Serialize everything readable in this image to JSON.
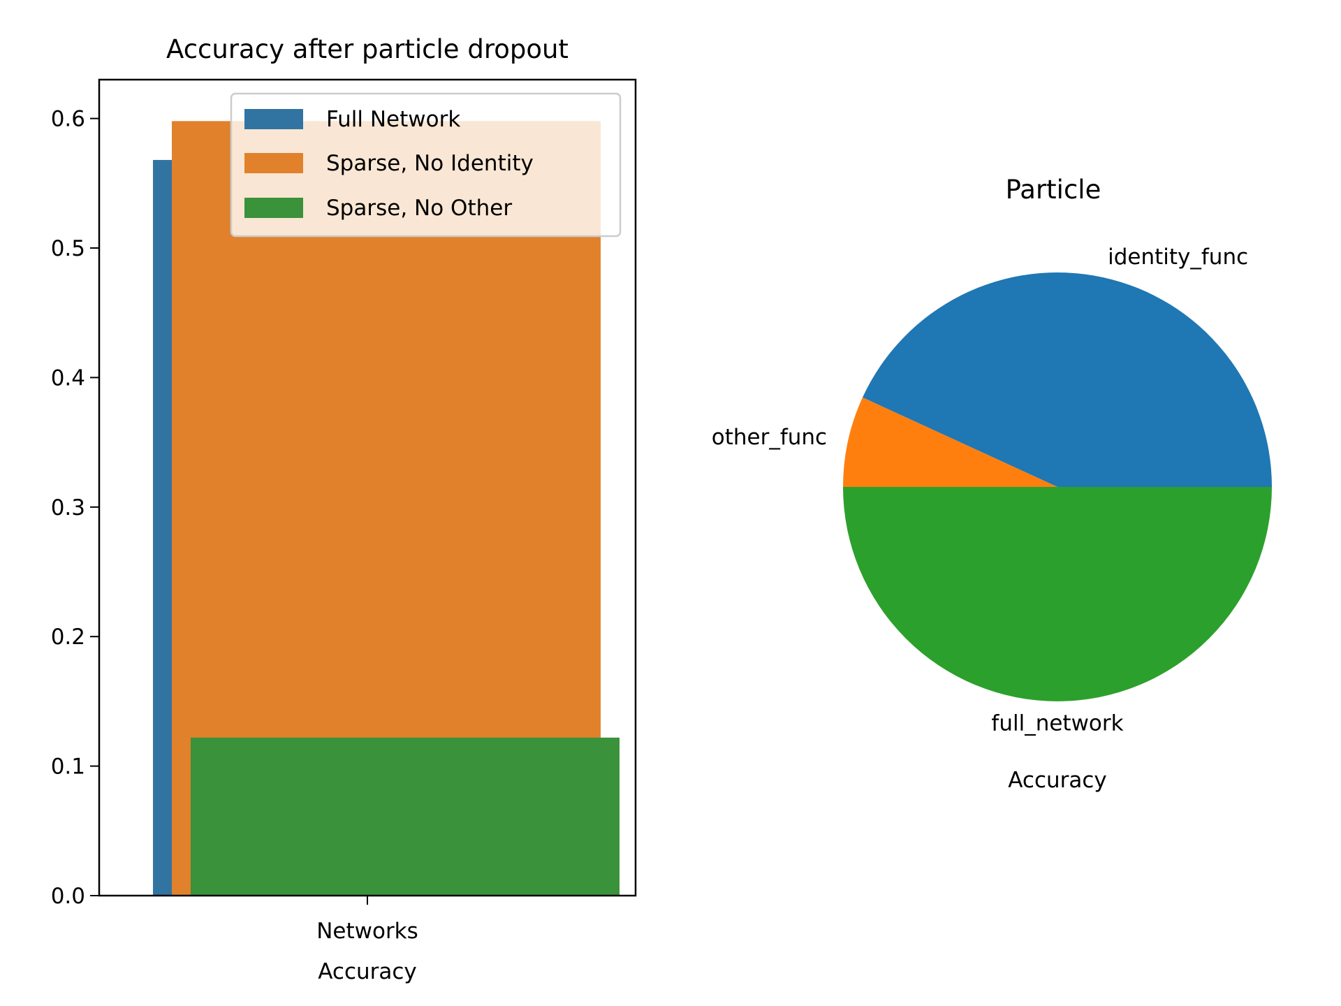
{
  "chart_data": [
    {
      "type": "bar",
      "title": "Accuracy after particle dropout",
      "categories": [
        "Networks"
      ],
      "xlabel": "Accuracy",
      "ylabel": "",
      "ylim": [
        0,
        0.63
      ],
      "yticks": [
        "0.0",
        "0.1",
        "0.2",
        "0.3",
        "0.4",
        "0.5",
        "0.6"
      ],
      "legend_position": "top-right",
      "series": [
        {
          "name": "Full Network",
          "values": [
            0.568
          ],
          "color": "#3274a1"
        },
        {
          "name": "Sparse, No Identity",
          "values": [
            0.598
          ],
          "color": "#e1812c"
        },
        {
          "name": "Sparse, No Other",
          "values": [
            0.122
          ],
          "color": "#3a923a"
        }
      ]
    },
    {
      "type": "pie",
      "title": "Particle",
      "xlabel": "Accuracy",
      "slices": [
        {
          "label": "identity_func",
          "value": 0.4315,
          "color": "#1f77b4"
        },
        {
          "label": "other_func",
          "value": 0.0685,
          "color": "#ff7f0e"
        },
        {
          "label": "full_network",
          "value": 0.5,
          "color": "#2ca02c"
        }
      ]
    }
  ]
}
